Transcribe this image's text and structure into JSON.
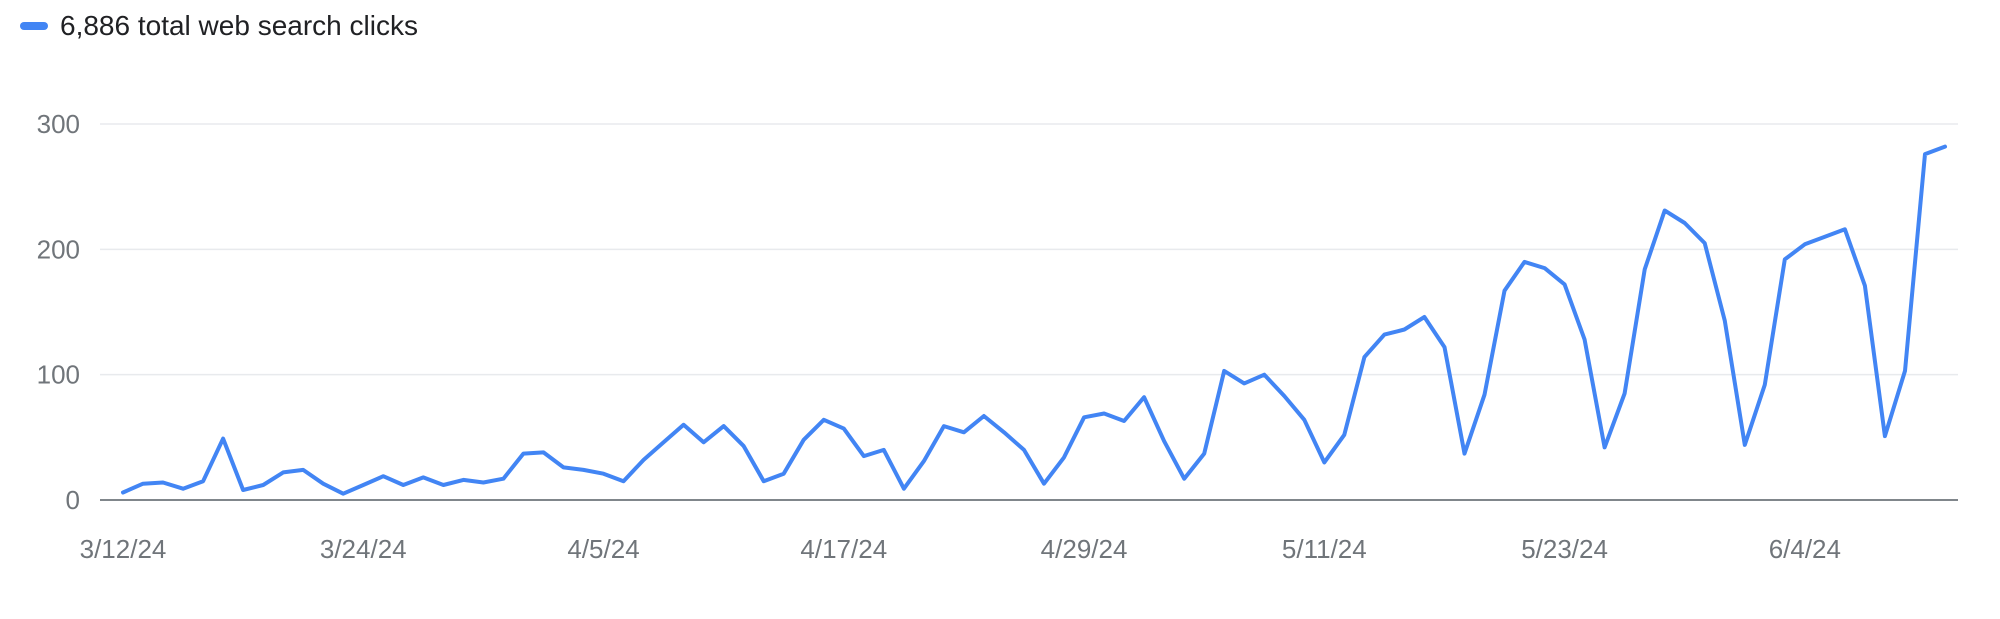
{
  "legend": {
    "label": "6,886 total web search clicks",
    "color": "#4285f4"
  },
  "chart_data": {
    "type": "line",
    "title": "",
    "xlabel": "",
    "ylabel": "",
    "ylim": [
      0,
      300
    ],
    "y_ticks": [
      0,
      100,
      200,
      300
    ],
    "grid": true,
    "legend_position": "top-left",
    "x_tick_labels": [
      "3/12/24",
      "3/24/24",
      "4/5/24",
      "4/17/24",
      "4/29/24",
      "5/11/24",
      "5/23/24",
      "6/4/24"
    ],
    "x_start": "3/12/24",
    "x_end": "6/13/24",
    "series": [
      {
        "name": "6,886 total web search clicks",
        "color": "#4285f4",
        "values": [
          6,
          13,
          14,
          9,
          15,
          49,
          8,
          12,
          22,
          24,
          13,
          5,
          12,
          19,
          12,
          18,
          12,
          16,
          14,
          17,
          37,
          38,
          26,
          24,
          21,
          15,
          32,
          46,
          60,
          46,
          59,
          43,
          15,
          21,
          48,
          64,
          57,
          35,
          40,
          9,
          31,
          59,
          54,
          67,
          54,
          40,
          13,
          34,
          66,
          69,
          63,
          82,
          47,
          17,
          37,
          103,
          93,
          100,
          83,
          64,
          30,
          52,
          114,
          132,
          136,
          146,
          122,
          37,
          84,
          167,
          190,
          185,
          172,
          128,
          42,
          85,
          184,
          231,
          221,
          205,
          143,
          44,
          92,
          192,
          204,
          210,
          216,
          171,
          51,
          103,
          276,
          282
        ]
      }
    ]
  }
}
